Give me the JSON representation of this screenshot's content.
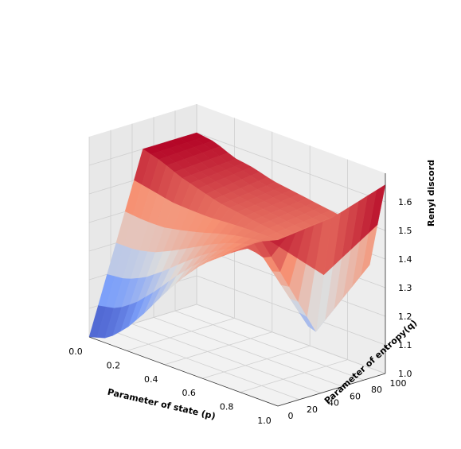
{
  "chart_data": {
    "type": "surface",
    "title": "",
    "xlabel": "Parameter of state (p)",
    "ylabel": "Parameter of entropy(q)",
    "zlabel": "Renyi discord",
    "xlim": [
      0.0,
      1.0
    ],
    "ylim": [
      0,
      100
    ],
    "zlim": [
      1.0,
      1.7
    ],
    "xticks": [
      "0.0",
      "0.2",
      "0.4",
      "0.6",
      "0.8",
      "1.0"
    ],
    "yticks": [
      "0",
      "20",
      "40",
      "60",
      "80",
      "100"
    ],
    "zticks": [
      "1.0",
      "1.1",
      "1.2",
      "1.3",
      "1.4",
      "1.5",
      "1.6"
    ],
    "colormap": "coolwarm",
    "grid": true,
    "surface_samples": {
      "p": [
        0.0,
        0.1,
        0.2,
        0.3,
        0.4,
        0.5,
        0.6,
        0.7,
        0.8,
        0.9,
        1.0
      ],
      "q": [
        0,
        50,
        100
      ],
      "z": [
        [
          1.0,
          1.6,
          1.6
        ],
        [
          1.02,
          1.58,
          1.59
        ],
        [
          1.08,
          1.55,
          1.56
        ],
        [
          1.16,
          1.53,
          1.55
        ],
        [
          1.25,
          1.51,
          1.53
        ],
        [
          1.33,
          1.5,
          1.52
        ],
        [
          1.4,
          1.49,
          1.51
        ],
        [
          1.45,
          1.48,
          1.5
        ],
        [
          1.5,
          1.47,
          1.49
        ],
        [
          1.55,
          1.1,
          1.3
        ],
        [
          1.58,
          1.6,
          1.66
        ]
      ]
    }
  }
}
